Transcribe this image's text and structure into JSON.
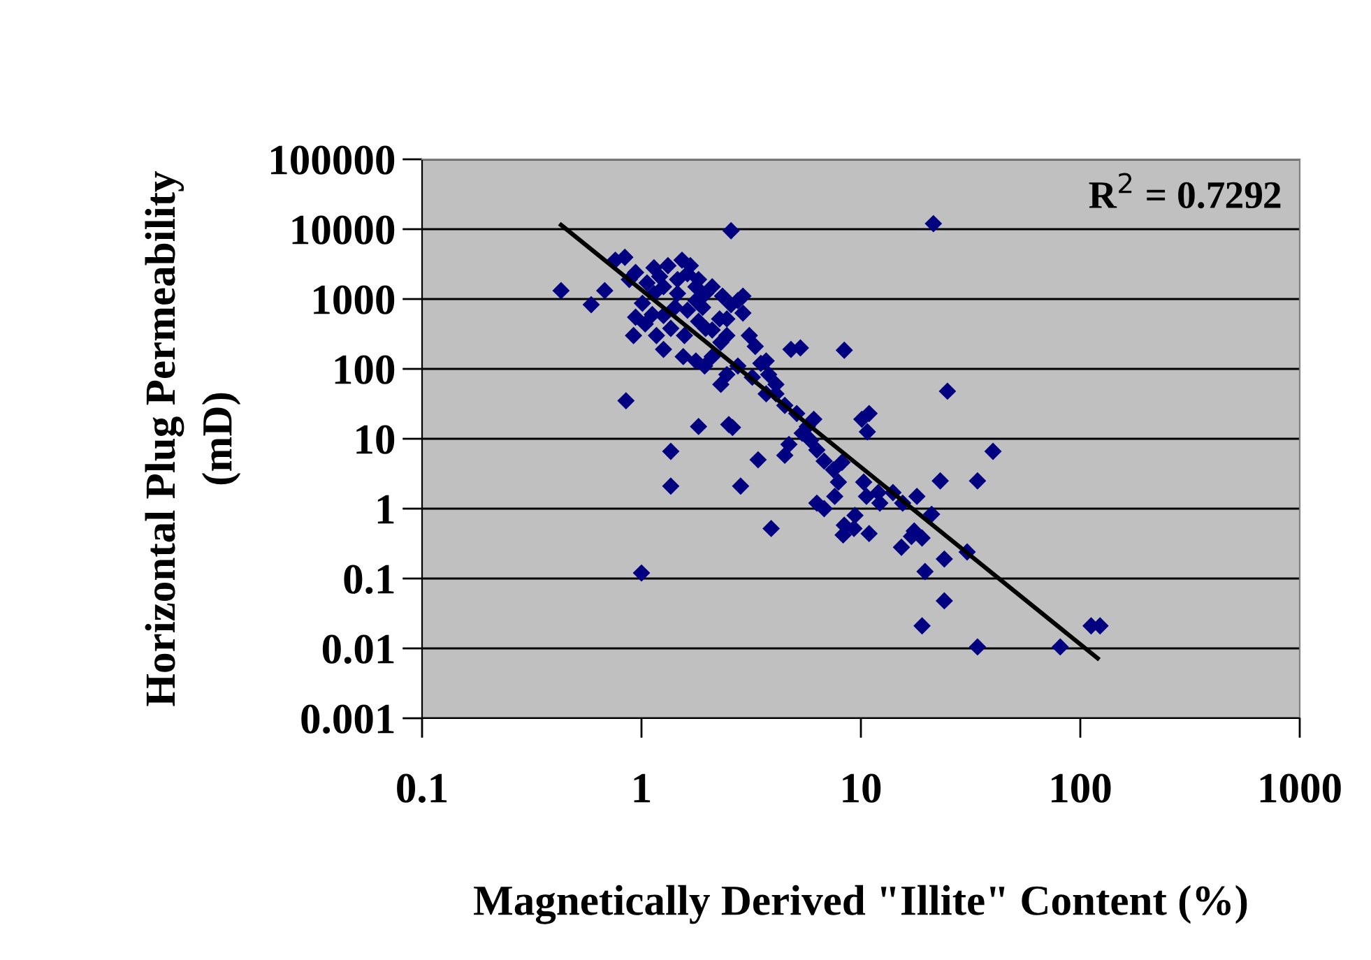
{
  "chart_data": {
    "type": "scatter",
    "xlabel": "Magnetically Derived \"Illite\" Content (%)",
    "ylabel": "Horizontal Plug Permeability\n(mD)",
    "log": "xy",
    "xlim": [
      0.1,
      1000
    ],
    "xticks": [
      0.1,
      1,
      10,
      100,
      1000
    ],
    "ylim": [
      0.001,
      100000
    ],
    "yticks": [
      0.001,
      0.01,
      0.1,
      1,
      10,
      100,
      1000,
      10000,
      100000
    ],
    "grid": "y",
    "legend": false,
    "marker": "diamond",
    "annotations": [
      "R$^{2}$ = 0.7292"
    ],
    "series": [
      {
        "color": "#000080",
        "x": [
          0.43,
          0.59,
          0.68,
          0.76,
          0.84,
          0.85,
          0.92,
          2.56,
          21.4,
          1.0,
          1.36,
          1.36,
          1.82,
          2.5,
          2.6,
          2.83,
          3.9,
          3.4,
          3.7,
          4.8,
          5.3,
          8.4,
          10.1,
          10.9,
          10.7,
          10.3,
          8.2,
          24.8,
          40,
          34,
          23,
          21,
          30.5,
          24,
          24,
          19,
          34,
          81,
          112,
          123,
          19.6,
          19,
          17.5,
          15.3,
          18,
          17,
          15.5,
          14,
          12,
          12.2,
          10.9,
          9.3,
          8.4,
          9.4,
          8.3,
          10.6,
          6.3,
          6.8,
          7.6,
          7.9,
          7.5,
          6.8,
          6.3,
          5.9,
          5.4,
          6.1,
          5.7,
          4.7,
          4.5,
          5.1,
          4.5,
          4.1,
          4.1,
          3.8,
          3.5,
          3.2,
          2.75,
          2.45,
          2.3,
          2.3,
          1.94,
          2.1,
          1.77,
          1.55,
          1.26,
          1.17,
          1.36,
          1.04,
          1.12,
          0.94,
          1.01,
          1.14,
          1.26,
          1.46,
          1.62,
          1.32,
          1.14,
          0.94,
          0.88,
          1.53,
          1.67,
          1.82,
          1.96,
          2.1,
          2.34,
          2.56,
          2.75,
          2.9,
          2.9,
          2.27,
          1.96,
          1.62,
          1.77,
          1.42,
          1.26,
          1.57,
          1.82,
          2.1,
          2.45,
          1.46,
          1.06,
          1.21,
          3.3,
          3.1,
          3.7,
          1.9,
          1.77,
          2.45
        ],
        "values": [
          1320,
          830,
          1320,
          3600,
          3960,
          35,
          300,
          9500,
          12000,
          0.12,
          6.6,
          2.1,
          15,
          16,
          14.5,
          2.1,
          0.52,
          5,
          44,
          190,
          200,
          185,
          19,
          23,
          12.6,
          2.4,
          4.6,
          48,
          6.6,
          2.5,
          2.5,
          0.83,
          0.24,
          0.048,
          0.19,
          0.021,
          0.0105,
          0.0105,
          0.021,
          0.021,
          0.126,
          0.38,
          0.48,
          0.28,
          1.5,
          0.4,
          1.2,
          1.7,
          1.7,
          1.2,
          0.44,
          0.52,
          0.58,
          0.8,
          0.42,
          1.5,
          1.2,
          1.0,
          1.5,
          2.4,
          3.6,
          4.8,
          6.9,
          9.5,
          12,
          19,
          15,
          8.3,
          5.8,
          23,
          30,
          44,
          60,
          83,
          120,
          76,
          110,
          83,
          60,
          240,
          110,
          150,
          130,
          150,
          190,
          300,
          380,
          440,
          600,
          550,
          870,
          1200,
          1500,
          1900,
          2300,
          3000,
          2800,
          2400,
          1900,
          3600,
          3000,
          1900,
          1200,
          1500,
          1100,
          830,
          950,
          630,
          1100,
          520,
          380,
          690,
          950,
          760,
          580,
          300,
          480,
          360,
          300,
          1200,
          1700,
          2100,
          210,
          300,
          130,
          760,
          1500,
          520
        ]
      },
      {
        "type": "line",
        "color": "#000000",
        "marker": "none",
        "x": [
          0.43,
          120
        ],
        "values": [
          11500,
          0.0072
        ]
      }
    ]
  }
}
